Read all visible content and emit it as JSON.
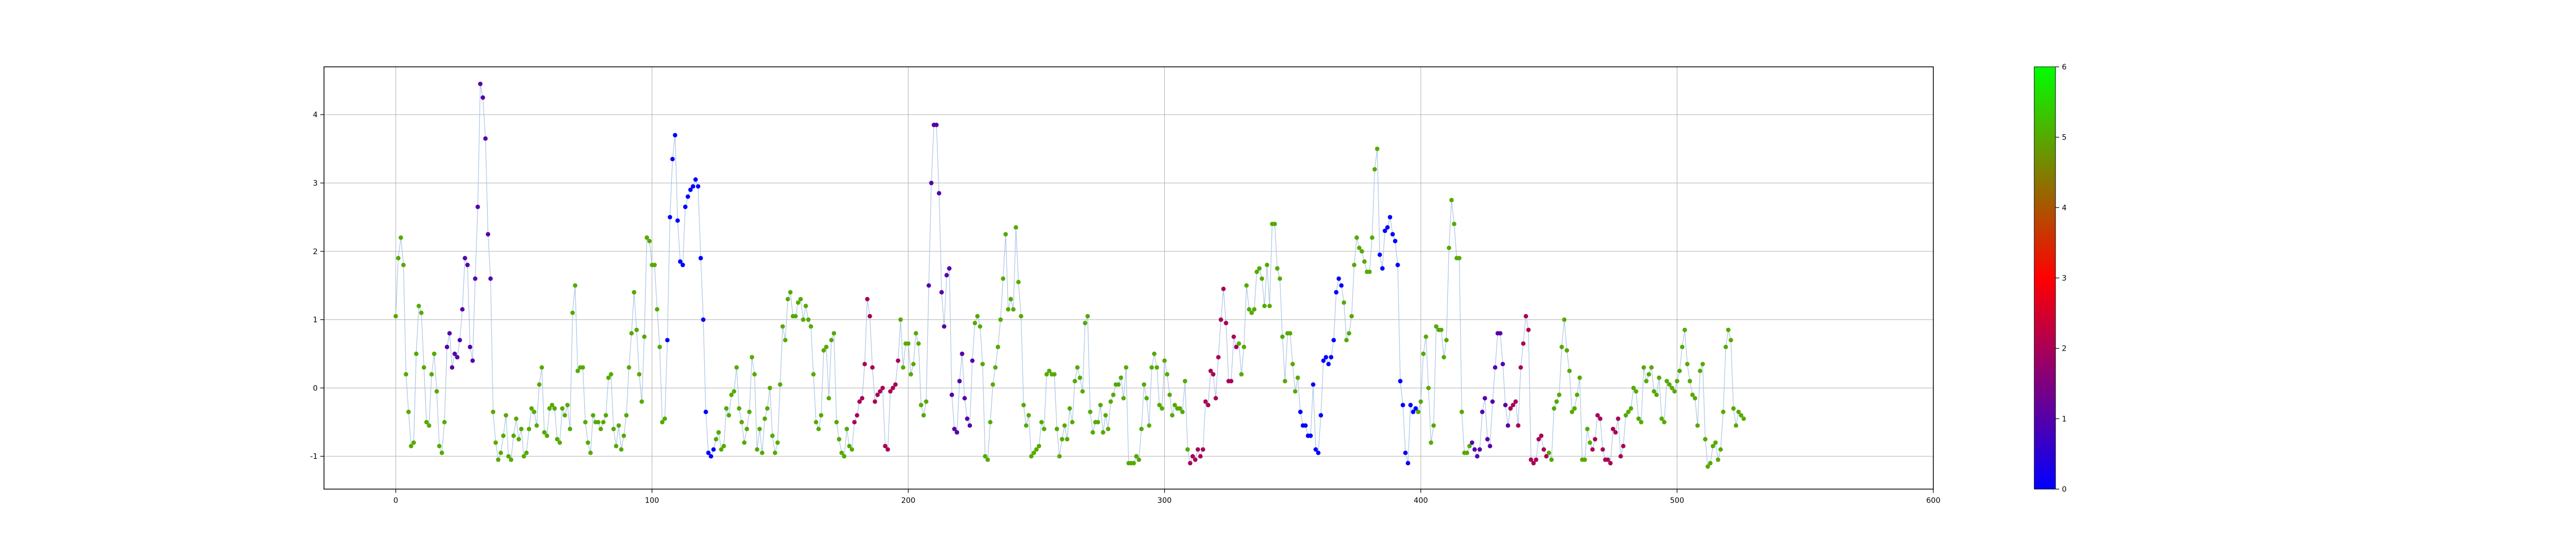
{
  "chart_data": {
    "type": "scatter",
    "title": "",
    "xlabel": "",
    "ylabel": "",
    "xlim": [
      -28,
      600
    ],
    "ylim": [
      -1.48,
      4.7
    ],
    "x_ticks": [
      0,
      100,
      200,
      300,
      400,
      500,
      600
    ],
    "y_ticks": [
      -1,
      0,
      1,
      2,
      3,
      4
    ],
    "grid": true,
    "connecting_line": true,
    "colorbar": {
      "vmin": 0,
      "vmax": 6,
      "ticks": [
        0,
        1,
        2,
        3,
        4,
        5,
        6
      ],
      "colormap": "brg",
      "colors": [
        "#0000ff",
        "#ff0000",
        "#00ff00"
      ]
    },
    "series": [
      {
        "x_start": 0,
        "x_step": 1,
        "y": [
          1.05,
          1.9,
          2.2,
          1.8,
          0.2,
          -0.35,
          -0.85,
          -0.8,
          0.5,
          1.2,
          1.1,
          0.3,
          -0.5,
          -0.55,
          0.2,
          0.5,
          -0.05,
          -0.85,
          -0.95,
          -0.5,
          0.6,
          0.8,
          0.3,
          0.5,
          0.45,
          0.7,
          1.15,
          1.9,
          1.8,
          0.6,
          0.4,
          1.6,
          2.65,
          4.45,
          4.25,
          3.65,
          2.25,
          1.6,
          -0.35,
          -0.8,
          -1.05,
          -0.95,
          -0.7,
          -0.4,
          -1.0,
          -1.05,
          -0.7,
          -0.45,
          -0.75,
          -0.6,
          -1.0,
          -0.95,
          -0.6,
          -0.3,
          -0.35,
          -0.55,
          0.05,
          0.3,
          -0.65,
          -0.7,
          -0.3,
          -0.25,
          -0.3,
          -0.75,
          -0.8,
          -0.3,
          -0.4,
          -0.25,
          -0.6,
          1.1,
          1.5,
          0.25,
          0.3,
          0.3,
          -0.5,
          -0.8,
          -0.95,
          -0.4,
          -0.5,
          -0.5,
          -0.6,
          -0.5,
          -0.4,
          0.15,
          0.2,
          -0.6,
          -0.85,
          -0.55,
          -0.9,
          -0.7,
          -0.4,
          0.3,
          0.8,
          1.4,
          0.85,
          0.2,
          -0.2,
          0.75,
          2.2,
          2.15,
          1.8,
          1.8,
          1.15,
          0.6,
          -0.5,
          -0.45,
          0.7,
          2.5,
          3.35,
          3.7,
          2.45,
          1.85,
          1.8,
          2.65,
          2.8,
          2.9,
          2.95,
          3.05,
          2.95,
          1.9,
          1.0,
          -0.35,
          -0.95,
          -1.0,
          -0.9,
          -0.75,
          -0.65,
          -0.9,
          -0.85,
          -0.3,
          -0.4,
          -0.1,
          -0.05,
          0.3,
          -0.3,
          -0.5,
          -0.8,
          -0.6,
          -0.35,
          0.45,
          0.2,
          -0.9,
          -0.6,
          -0.95,
          -0.45,
          -0.3,
          0.0,
          -0.7,
          -0.95,
          -0.8,
          0.05,
          0.9,
          0.7,
          1.3,
          1.4,
          1.05,
          1.05,
          1.25,
          1.3,
          1.0,
          1.2,
          1.0,
          0.9,
          0.2,
          -0.5,
          -0.6,
          -0.4,
          0.55,
          0.6,
          -0.15,
          0.7,
          0.8,
          -0.5,
          -0.75,
          -0.95,
          -1.0,
          -0.6,
          -0.85,
          -0.9,
          -0.5,
          -0.4,
          -0.2,
          -0.15,
          0.35,
          1.3,
          1.05,
          0.3,
          -0.2,
          -0.1,
          -0.05,
          0.0,
          -0.85,
          -0.9,
          -0.05,
          0.0,
          0.05,
          0.4,
          1.0,
          0.3,
          0.65,
          0.65,
          0.2,
          0.35,
          0.8,
          0.65,
          -0.25,
          -0.4,
          -0.2,
          1.5,
          3.0,
          3.85,
          3.85,
          2.85,
          1.4,
          0.9,
          1.65,
          1.75,
          -0.1,
          -0.6,
          -0.65,
          0.1,
          0.5,
          -0.15,
          -0.45,
          -0.55,
          0.4,
          0.95,
          1.05,
          0.9,
          0.35,
          -1.0,
          -1.05,
          -0.5,
          0.05,
          0.3,
          0.6,
          1.0,
          1.6,
          2.25,
          1.15,
          1.3,
          1.15,
          2.35,
          1.55,
          1.05,
          -0.25,
          -0.55,
          -0.4,
          -1.0,
          -0.95,
          -0.9,
          -0.85,
          -0.5,
          -0.6,
          0.2,
          0.25,
          0.2,
          0.2,
          -0.6,
          -1.0,
          -0.75,
          -0.55,
          -0.75,
          -0.3,
          -0.5,
          0.1,
          0.3,
          0.15,
          -0.05,
          0.95,
          1.05,
          -0.35,
          -0.65,
          -0.5,
          -0.5,
          -0.25,
          -0.65,
          -0.4,
          -0.6,
          -0.2,
          -0.1,
          0.05,
          0.05,
          0.15,
          -0.15,
          0.3,
          -1.1,
          -1.1,
          -1.1,
          -1.0,
          -1.05,
          -0.6,
          0.05,
          -0.15,
          -0.55,
          0.3,
          0.5,
          0.3,
          -0.25,
          -0.3,
          0.4,
          0.2,
          -0.1,
          -0.4,
          -0.25,
          -0.3,
          -0.3,
          -0.35,
          0.1,
          -0.9,
          -1.1,
          -1.0,
          -1.05,
          -0.9,
          -1.0,
          -0.9,
          -0.2,
          -0.25,
          0.25,
          0.2,
          -0.15,
          0.45,
          1.0,
          1.45,
          0.95,
          0.1,
          0.1,
          0.75,
          0.6,
          0.65,
          0.2,
          0.6,
          1.5,
          1.15,
          1.1,
          1.15,
          1.7,
          1.75,
          1.6,
          1.2,
          1.8,
          1.2,
          2.4,
          2.4,
          1.75,
          1.6,
          0.75,
          0.1,
          0.8,
          0.8,
          0.35,
          -0.05,
          0.15,
          -0.35,
          -0.55,
          -0.55,
          -0.7,
          -0.7,
          0.05,
          -0.9,
          -0.95,
          -0.4,
          0.4,
          0.45,
          0.35,
          0.45,
          0.7,
          1.4,
          1.6,
          1.5,
          1.25,
          0.7,
          0.8,
          1.05,
          1.8,
          2.2,
          2.05,
          2.0,
          1.85,
          1.7,
          1.7,
          2.2,
          3.2,
          3.5,
          1.95,
          1.75,
          2.3,
          2.35,
          2.5,
          2.25,
          2.15,
          1.8,
          0.1,
          -0.25,
          -0.95,
          -1.1,
          -0.25,
          -0.35,
          -0.3,
          -0.35,
          -0.2,
          0.5,
          0.75,
          0.0,
          -0.8,
          -0.55,
          0.9,
          0.85,
          0.85,
          0.45,
          0.7,
          2.05,
          2.75,
          2.4,
          1.9,
          1.9,
          -0.35,
          -0.95,
          -0.95,
          -0.85,
          -0.8,
          -0.9,
          -1.0,
          -0.9,
          -0.35,
          -0.15,
          -0.75,
          -0.85,
          -0.2,
          0.3,
          0.8,
          0.8,
          0.35,
          -0.25,
          -0.55,
          -0.3,
          -0.25,
          -0.2,
          -0.55,
          0.3,
          0.65,
          1.05,
          0.85,
          -1.05,
          -1.1,
          -1.05,
          -0.75,
          -0.7,
          -0.9,
          -1.0,
          -0.95,
          -1.05,
          -0.3,
          -0.2,
          -0.1,
          0.6,
          1.0,
          0.55,
          0.25,
          -0.35,
          -0.3,
          -0.1,
          0.15,
          -1.05,
          -1.05,
          -0.6,
          -0.8,
          -0.9,
          -0.75,
          -0.4,
          -0.45,
          -0.9,
          -1.05,
          -1.05,
          -1.1,
          -0.6,
          -0.65,
          -0.45,
          -1.0,
          -0.85,
          -0.4,
          -0.35,
          -0.3,
          0.0,
          -0.05,
          -0.45,
          -0.5,
          0.3,
          0.1,
          0.2,
          0.3,
          -0.05,
          -0.1,
          0.15,
          -0.45,
          -0.5,
          0.1,
          0.05,
          0.0,
          -0.05,
          0.1,
          0.25,
          0.6,
          0.85,
          0.35,
          0.1,
          -0.1,
          -0.15,
          -0.55,
          0.25,
          0.35,
          -0.75,
          -1.15,
          -1.1,
          -0.85,
          -0.8,
          -1.05,
          -0.9,
          -0.35,
          0.6,
          0.85,
          0.7,
          -0.3,
          -0.55,
          -0.35,
          -0.4,
          -0.45
        ]
      }
    ],
    "color_values": [
      5,
      5,
      5,
      5,
      5,
      5,
      5,
      5,
      5,
      5,
      5,
      5,
      5,
      5,
      5,
      5,
      5,
      5,
      5,
      5,
      1,
      1,
      1,
      1,
      1,
      1,
      1,
      1,
      1,
      1,
      1,
      1,
      1,
      1,
      1,
      1,
      1,
      1,
      5,
      5,
      5,
      5,
      5,
      5,
      5,
      5,
      5,
      5,
      5,
      5,
      5,
      5,
      5,
      5,
      5,
      5,
      5,
      5,
      5,
      5,
      5,
      5,
      5,
      5,
      5,
      5,
      5,
      5,
      5,
      5,
      5,
      5,
      5,
      5,
      5,
      5,
      5,
      5,
      5,
      5,
      5,
      5,
      5,
      5,
      5,
      5,
      5,
      5,
      5,
      5,
      5,
      5,
      5,
      5,
      5,
      5,
      5,
      5,
      5,
      5,
      5,
      5,
      5,
      5,
      5,
      5,
      0,
      0,
      0,
      0,
      0,
      0,
      0,
      0,
      0,
      0,
      0,
      0,
      0,
      0,
      0,
      0,
      0,
      0,
      0,
      5,
      5,
      5,
      5,
      5,
      5,
      5,
      5,
      5,
      5,
      5,
      5,
      5,
      5,
      5,
      5,
      5,
      5,
      5,
      5,
      5,
      5,
      5,
      5,
      5,
      5,
      5,
      5,
      5,
      5,
      5,
      5,
      5,
      5,
      5,
      5,
      5,
      5,
      5,
      5,
      5,
      5,
      5,
      5,
      5,
      5,
      5,
      5,
      5,
      5,
      5,
      5,
      5,
      5,
      2,
      2,
      2,
      2,
      2,
      2,
      2,
      2,
      2,
      2,
      2,
      2,
      2,
      2,
      2,
      2,
      2,
      2,
      5,
      5,
      5,
      5,
      5,
      5,
      5,
      5,
      5,
      5,
      5,
      1,
      1,
      1,
      1,
      1,
      1,
      1,
      1,
      1,
      1,
      1,
      1,
      1,
      1,
      1,
      1,
      1,
      1,
      5,
      5,
      5,
      5,
      5,
      5,
      5,
      5,
      5,
      5,
      5,
      5,
      5,
      5,
      5,
      5,
      5,
      5,
      5,
      5,
      5,
      5,
      5,
      5,
      5,
      5,
      5,
      5,
      5,
      5,
      5,
      5,
      5,
      5,
      5,
      5,
      5,
      5,
      5,
      5,
      5,
      5,
      5,
      5,
      5,
      5,
      5,
      5,
      5,
      5,
      5,
      5,
      5,
      5,
      5,
      5,
      5,
      5,
      5,
      5,
      5,
      5,
      5,
      5,
      5,
      5,
      5,
      5,
      5,
      5,
      5,
      5,
      5,
      5,
      5,
      5,
      5,
      5,
      5,
      5,
      5,
      5,
      5,
      5,
      2,
      2,
      2,
      2,
      2,
      2,
      2,
      2,
      2,
      2,
      2,
      2,
      2,
      2,
      2,
      2,
      2,
      2,
      2,
      5,
      5,
      5,
      5,
      5,
      5,
      5,
      5,
      5,
      5,
      5,
      5,
      5,
      5,
      5,
      5,
      5,
      5,
      5,
      5,
      5,
      5,
      5,
      5,
      0,
      0,
      0,
      0,
      0,
      0,
      0,
      0,
      0,
      0,
      0,
      0,
      0,
      0,
      0,
      0,
      0,
      5,
      5,
      5,
      5,
      5,
      5,
      5,
      5,
      5,
      5,
      5,
      5,
      5,
      5,
      0,
      0,
      0,
      0,
      0,
      0,
      0,
      0,
      0,
      0,
      0,
      0,
      0,
      0,
      0,
      5,
      5,
      5,
      5,
      5,
      5,
      5,
      5,
      5,
      5,
      5,
      5,
      5,
      5,
      5,
      5,
      5,
      5,
      5,
      5,
      5,
      1,
      1,
      1,
      1,
      1,
      1,
      1,
      1,
      1,
      1,
      1,
      1,
      1,
      1,
      1,
      2,
      2,
      2,
      2,
      2,
      2,
      2,
      2,
      2,
      2,
      2,
      2,
      2,
      2,
      2,
      5,
      5,
      5,
      5,
      5,
      5,
      5,
      5,
      5,
      5,
      5,
      5,
      5,
      5,
      5,
      5,
      5,
      2,
      2,
      2,
      2,
      2,
      2,
      2,
      2,
      2,
      2,
      2,
      2,
      2,
      5,
      5,
      5,
      5,
      5,
      5,
      5,
      5,
      5,
      5,
      5,
      5,
      5,
      5,
      5,
      5,
      5,
      5,
      5,
      5,
      5,
      5,
      5,
      5,
      5,
      5,
      5,
      5,
      5,
      5,
      5,
      5,
      5,
      5,
      5,
      5,
      5,
      5,
      5,
      5,
      5,
      5,
      5,
      5,
      5,
      5,
      5,
      5,
      5,
      5,
      5,
      5,
      5,
      5,
      5,
      5,
      5,
      5,
      5,
      5,
      5,
      5,
      5,
      5,
      5,
      5,
      5,
      5,
      5,
      5,
      5,
      5,
      5,
      5,
      5,
      5,
      5,
      5,
      5,
      5,
      5,
      5
    ]
  }
}
